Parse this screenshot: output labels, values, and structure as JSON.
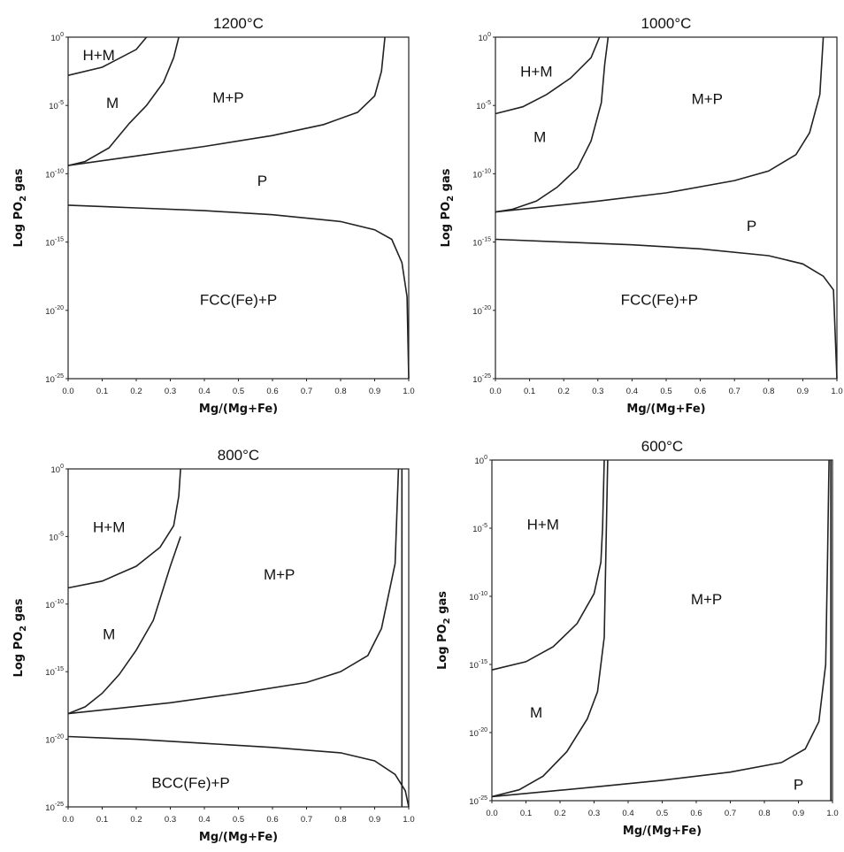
{
  "chart_data": [
    {
      "type": "line",
      "title": "1200°C",
      "xlabel": "Mg/(Mg+Fe)",
      "ylabel": "Log PO2 gas",
      "xlim": [
        0,
        1
      ],
      "ylim": [
        -25,
        0
      ],
      "x_ticks": [
        "0.0",
        "0.1",
        "0.2",
        "0.3",
        "0.4",
        "0.5",
        "0.6",
        "0.7",
        "0.8",
        "0.9",
        "1.0"
      ],
      "y_ticks": [
        {
          "base": "10",
          "exp": "0"
        },
        {
          "base": "10",
          "exp": "-5"
        },
        {
          "base": "10",
          "exp": "-10"
        },
        {
          "base": "10",
          "exp": "-15"
        },
        {
          "base": "10",
          "exp": "-20"
        },
        {
          "base": "10",
          "exp": "-25"
        }
      ],
      "series": [
        {
          "values": [
            [
              0,
              -2.8
            ],
            [
              0.1,
              -2.2
            ],
            [
              0.2,
              -0.9
            ],
            [
              0.23,
              0
            ]
          ]
        },
        {
          "values": [
            [
              0,
              -9.4
            ],
            [
              0.05,
              -9.1
            ],
            [
              0.12,
              -8.1
            ],
            [
              0.18,
              -6.3
            ],
            [
              0.23,
              -5.0
            ],
            [
              0.28,
              -3.3
            ],
            [
              0.31,
              -1.5
            ],
            [
              0.325,
              0
            ]
          ]
        },
        {
          "values": [
            [
              0,
              -9.4
            ],
            [
              0.2,
              -8.7
            ],
            [
              0.4,
              -8.0
            ],
            [
              0.6,
              -7.2
            ],
            [
              0.75,
              -6.4
            ],
            [
              0.85,
              -5.5
            ],
            [
              0.9,
              -4.3
            ],
            [
              0.92,
              -2.5
            ],
            [
              0.93,
              0
            ]
          ]
        },
        {
          "values": [
            [
              0,
              -12.3
            ],
            [
              0.2,
              -12.5
            ],
            [
              0.4,
              -12.7
            ],
            [
              0.6,
              -13.0
            ],
            [
              0.8,
              -13.5
            ],
            [
              0.9,
              -14.1
            ],
            [
              0.95,
              -14.8
            ],
            [
              0.98,
              -16.5
            ],
            [
              0.995,
              -19
            ],
            [
              1.0,
              -25
            ]
          ]
        }
      ],
      "annotations": [
        {
          "text": "H+M",
          "x": 0.09,
          "y": -1.3
        },
        {
          "text": "M",
          "x": 0.13,
          "y": -4.8
        },
        {
          "text": "M+P",
          "x": 0.47,
          "y": -4.4
        },
        {
          "text": "P",
          "x": 0.57,
          "y": -10.5
        },
        {
          "text": "FCC(Fe)+P",
          "x": 0.5,
          "y": -19.2
        }
      ]
    },
    {
      "type": "line",
      "title": "1000°C",
      "xlabel": "Mg/(Mg+Fe)",
      "ylabel": "Log PO2 gas",
      "xlim": [
        0,
        1
      ],
      "ylim": [
        -25,
        0
      ],
      "x_ticks": [
        "0.0",
        "0.1",
        "0.2",
        "0.3",
        "0.4",
        "0.5",
        "0.6",
        "0.7",
        "0.8",
        "0.9",
        "1.0"
      ],
      "y_ticks": [
        {
          "base": "10",
          "exp": "0"
        },
        {
          "base": "10",
          "exp": "-5"
        },
        {
          "base": "10",
          "exp": "-10"
        },
        {
          "base": "10",
          "exp": "-15"
        },
        {
          "base": "10",
          "exp": "-20"
        },
        {
          "base": "10",
          "exp": "-25"
        }
      ],
      "series": [
        {
          "values": [
            [
              0,
              -5.6
            ],
            [
              0.08,
              -5.1
            ],
            [
              0.15,
              -4.2
            ],
            [
              0.22,
              -3.0
            ],
            [
              0.28,
              -1.5
            ],
            [
              0.305,
              0
            ]
          ]
        },
        {
          "values": [
            [
              0,
              -12.8
            ],
            [
              0.05,
              -12.6
            ],
            [
              0.12,
              -12.0
            ],
            [
              0.18,
              -11.0
            ],
            [
              0.24,
              -9.6
            ],
            [
              0.28,
              -7.6
            ],
            [
              0.31,
              -4.8
            ],
            [
              0.32,
              -2.0
            ],
            [
              0.33,
              0
            ]
          ]
        },
        {
          "values": [
            [
              0,
              -12.8
            ],
            [
              0.3,
              -12.0
            ],
            [
              0.5,
              -11.4
            ],
            [
              0.7,
              -10.5
            ],
            [
              0.8,
              -9.8
            ],
            [
              0.88,
              -8.6
            ],
            [
              0.92,
              -7.0
            ],
            [
              0.95,
              -4.2
            ],
            [
              0.96,
              0
            ]
          ]
        },
        {
          "values": [
            [
              0,
              -14.8
            ],
            [
              0.2,
              -15.0
            ],
            [
              0.4,
              -15.2
            ],
            [
              0.6,
              -15.5
            ],
            [
              0.8,
              -16.0
            ],
            [
              0.9,
              -16.6
            ],
            [
              0.96,
              -17.5
            ],
            [
              0.99,
              -18.5
            ],
            [
              1.0,
              -25
            ]
          ]
        }
      ],
      "annotations": [
        {
          "text": "H+M",
          "x": 0.12,
          "y": -2.5
        },
        {
          "text": "M",
          "x": 0.13,
          "y": -7.3
        },
        {
          "text": "M+P",
          "x": 0.62,
          "y": -4.5
        },
        {
          "text": "P",
          "x": 0.75,
          "y": -13.8
        },
        {
          "text": "FCC(Fe)+P",
          "x": 0.48,
          "y": -19.2
        }
      ]
    },
    {
      "type": "line",
      "title": "800°C",
      "xlabel": "Mg/(Mg+Fe)",
      "ylabel": "Log PO2 gas",
      "xlim": [
        0,
        1
      ],
      "ylim": [
        -25,
        0
      ],
      "x_ticks": [
        "0.0",
        "0.1",
        "0.2",
        "0.3",
        "0.4",
        "0.5",
        "0.6",
        "0.7",
        "0.8",
        "0.9",
        "1.0"
      ],
      "y_ticks": [
        {
          "base": "10",
          "exp": "0"
        },
        {
          "base": "10",
          "exp": "-5"
        },
        {
          "base": "10",
          "exp": "-10"
        },
        {
          "base": "10",
          "exp": "-15"
        },
        {
          "base": "10",
          "exp": "-20"
        },
        {
          "base": "10",
          "exp": "-25"
        }
      ],
      "series": [
        {
          "values": [
            [
              0,
              -8.8
            ],
            [
              0.1,
              -8.3
            ],
            [
              0.2,
              -7.2
            ],
            [
              0.27,
              -5.8
            ],
            [
              0.31,
              -4.2
            ],
            [
              0.325,
              -2.0
            ],
            [
              0.33,
              0
            ]
          ]
        },
        {
          "values": [
            [
              0,
              -18.1
            ],
            [
              0.05,
              -17.6
            ],
            [
              0.1,
              -16.6
            ],
            [
              0.15,
              -15.2
            ],
            [
              0.2,
              -13.4
            ],
            [
              0.25,
              -11.2
            ],
            [
              0.28,
              -8.8
            ],
            [
              0.3,
              -7.2
            ],
            [
              0.33,
              -5.0
            ]
          ]
        },
        {
          "values": [
            [
              0,
              -18.1
            ],
            [
              0.3,
              -17.3
            ],
            [
              0.5,
              -16.6
            ],
            [
              0.7,
              -15.8
            ],
            [
              0.8,
              -15.0
            ],
            [
              0.88,
              -13.8
            ],
            [
              0.92,
              -11.8
            ],
            [
              0.96,
              -7.0
            ],
            [
              0.97,
              0
            ]
          ]
        },
        {
          "values": [
            [
              0.98,
              0
            ],
            [
              0.98,
              -25
            ]
          ]
        },
        {
          "values": [
            [
              0,
              -19.8
            ],
            [
              0.2,
              -20.0
            ],
            [
              0.4,
              -20.3
            ],
            [
              0.6,
              -20.6
            ],
            [
              0.8,
              -21.0
            ],
            [
              0.9,
              -21.6
            ],
            [
              0.96,
              -22.6
            ],
            [
              0.99,
              -23.8
            ],
            [
              1.0,
              -25
            ]
          ]
        }
      ],
      "annotations": [
        {
          "text": "H+M",
          "x": 0.12,
          "y": -4.3
        },
        {
          "text": "M",
          "x": 0.12,
          "y": -12.2
        },
        {
          "text": "M+P",
          "x": 0.62,
          "y": -7.8
        },
        {
          "text": "BCC(Fe)+P",
          "x": 0.36,
          "y": -23.2
        }
      ]
    },
    {
      "type": "line",
      "title": "600°C",
      "xlabel": "Mg/(Mg+Fe)",
      "ylabel": "Log PO2 gas",
      "xlim": [
        0,
        1
      ],
      "ylim": [
        -25,
        0
      ],
      "x_ticks": [
        "0.0",
        "0.1",
        "0.2",
        "0.3",
        "0.4",
        "0.5",
        "0.6",
        "0.7",
        "0.8",
        "0.9",
        "1.0"
      ],
      "y_ticks": [
        {
          "base": "10",
          "exp": "0"
        },
        {
          "base": "10",
          "exp": "-5"
        },
        {
          "base": "10",
          "exp": "-10"
        },
        {
          "base": "10",
          "exp": "-15"
        },
        {
          "base": "10",
          "exp": "-20"
        },
        {
          "base": "10",
          "exp": "-25"
        }
      ],
      "series": [
        {
          "values": [
            [
              0,
              -15.4
            ],
            [
              0.1,
              -14.8
            ],
            [
              0.18,
              -13.7
            ],
            [
              0.25,
              -12.0
            ],
            [
              0.3,
              -9.8
            ],
            [
              0.32,
              -7.5
            ],
            [
              0.325,
              -5.0
            ],
            [
              0.33,
              0
            ]
          ]
        },
        {
          "values": [
            [
              0,
              -24.7
            ],
            [
              0.08,
              -24.2
            ],
            [
              0.15,
              -23.2
            ],
            [
              0.22,
              -21.4
            ],
            [
              0.28,
              -19.0
            ],
            [
              0.31,
              -17.0
            ],
            [
              0.33,
              -13.0
            ],
            [
              0.34,
              0
            ]
          ]
        },
        {
          "values": [
            [
              0,
              -24.7
            ],
            [
              0.3,
              -24.0
            ],
            [
              0.5,
              -23.5
            ],
            [
              0.7,
              -22.9
            ],
            [
              0.85,
              -22.2
            ],
            [
              0.92,
              -21.2
            ],
            [
              0.96,
              -19.2
            ],
            [
              0.98,
              -15.0
            ],
            [
              0.985,
              -8.0
            ],
            [
              0.99,
              0
            ]
          ]
        },
        {
          "values": [
            [
              0.995,
              0
            ],
            [
              0.995,
              -25
            ]
          ]
        }
      ],
      "annotations": [
        {
          "text": "H+M",
          "x": 0.15,
          "y": -4.7
        },
        {
          "text": "M",
          "x": 0.13,
          "y": -18.5
        },
        {
          "text": "M+P",
          "x": 0.63,
          "y": -10.2
        },
        {
          "text": "P",
          "x": 0.9,
          "y": -23.8
        }
      ]
    }
  ]
}
